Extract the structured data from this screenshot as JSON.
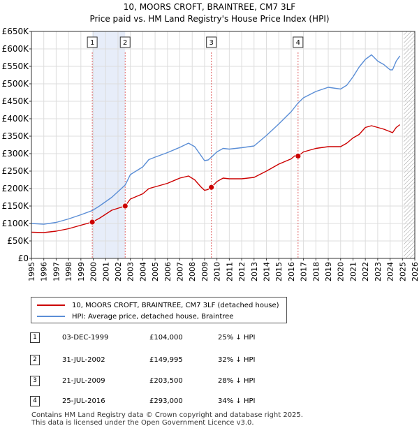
{
  "title_line1": "10, MOORS CROFT, BRAINTREE, CM7 3LF",
  "title_line2": "Price paid vs. HM Land Registry's House Price Index (HPI)",
  "chart_data": {
    "type": "line",
    "x_range": [
      1995,
      2026
    ],
    "ylim": [
      0,
      650000
    ],
    "y_ticks": [
      0,
      50000,
      100000,
      150000,
      200000,
      250000,
      300000,
      350000,
      400000,
      450000,
      500000,
      550000,
      600000,
      650000
    ],
    "y_tick_labels": [
      "£0",
      "£50K",
      "£100K",
      "£150K",
      "£200K",
      "£250K",
      "£300K",
      "£350K",
      "£400K",
      "£450K",
      "£500K",
      "£550K",
      "£600K",
      "£650K"
    ],
    "x_ticks": [
      1995,
      1996,
      1997,
      1998,
      1999,
      2000,
      2001,
      2002,
      2003,
      2004,
      2005,
      2006,
      2007,
      2008,
      2009,
      2010,
      2011,
      2012,
      2013,
      2014,
      2015,
      2016,
      2017,
      2018,
      2019,
      2020,
      2021,
      2022,
      2023,
      2024,
      2025,
      2026
    ],
    "x_tick_labels": [
      "1995",
      "1996",
      "1997",
      "1998",
      "1999",
      "2000",
      "2001",
      "2002",
      "2003",
      "2004",
      "2005",
      "2006",
      "2007",
      "2008",
      "2009",
      "2010",
      "2011",
      "2012",
      "2013",
      "2014",
      "2015",
      "2016",
      "2017",
      "2018",
      "2019",
      "2020",
      "2021",
      "2022",
      "2023",
      "2024",
      "2025",
      "2026"
    ],
    "grid": true,
    "hatched_after": 2025.1,
    "shaded_periods": [
      [
        1999.92,
        2002.58
      ]
    ],
    "series": [
      {
        "name": "10, MOORS CROFT, BRAINTREE, CM7 3LF (detached house)",
        "color": "#cc0000",
        "points": [
          [
            1995.0,
            75000
          ],
          [
            1996.0,
            74000
          ],
          [
            1997.0,
            78000
          ],
          [
            1998.0,
            85000
          ],
          [
            1999.0,
            95000
          ],
          [
            1999.92,
            104000
          ],
          [
            2000.5,
            115000
          ],
          [
            2001.5,
            138000
          ],
          [
            2002.58,
            149995
          ],
          [
            2003.0,
            170000
          ],
          [
            2004.0,
            185000
          ],
          [
            2004.5,
            200000
          ],
          [
            2005.0,
            205000
          ],
          [
            2006.0,
            215000
          ],
          [
            2007.0,
            230000
          ],
          [
            2007.7,
            236000
          ],
          [
            2008.2,
            225000
          ],
          [
            2008.7,
            205000
          ],
          [
            2009.0,
            195000
          ],
          [
            2009.25,
            197000
          ],
          [
            2009.55,
            203500
          ],
          [
            2010.0,
            220000
          ],
          [
            2010.5,
            230000
          ],
          [
            2011.0,
            228000
          ],
          [
            2012.0,
            228000
          ],
          [
            2013.0,
            232000
          ],
          [
            2014.0,
            250000
          ],
          [
            2015.0,
            270000
          ],
          [
            2016.0,
            285000
          ],
          [
            2016.4,
            297000
          ],
          [
            2016.56,
            293000
          ],
          [
            2017.0,
            305000
          ],
          [
            2018.0,
            315000
          ],
          [
            2019.0,
            320000
          ],
          [
            2020.0,
            320000
          ],
          [
            2020.5,
            330000
          ],
          [
            2021.0,
            345000
          ],
          [
            2021.5,
            355000
          ],
          [
            2022.0,
            375000
          ],
          [
            2022.5,
            380000
          ],
          [
            2023.0,
            375000
          ],
          [
            2023.5,
            370000
          ],
          [
            2024.0,
            363000
          ],
          [
            2024.2,
            360000
          ],
          [
            2024.5,
            375000
          ],
          [
            2024.8,
            383000
          ]
        ]
      },
      {
        "name": "HPI: Average price, detached house, Braintree",
        "color": "#5b8ed6",
        "points": [
          [
            1995.0,
            100000
          ],
          [
            1996.0,
            98000
          ],
          [
            1997.0,
            103000
          ],
          [
            1998.0,
            113000
          ],
          [
            1999.0,
            125000
          ],
          [
            1999.92,
            137000
          ],
          [
            2000.5,
            150000
          ],
          [
            2001.5,
            175000
          ],
          [
            2002.58,
            210000
          ],
          [
            2003.0,
            240000
          ],
          [
            2004.0,
            262000
          ],
          [
            2004.5,
            283000
          ],
          [
            2005.0,
            290000
          ],
          [
            2006.0,
            303000
          ],
          [
            2007.0,
            318000
          ],
          [
            2007.7,
            330000
          ],
          [
            2008.2,
            320000
          ],
          [
            2008.7,
            295000
          ],
          [
            2009.0,
            280000
          ],
          [
            2009.3,
            282000
          ],
          [
            2009.55,
            290000
          ],
          [
            2010.0,
            305000
          ],
          [
            2010.5,
            315000
          ],
          [
            2011.0,
            313000
          ],
          [
            2012.0,
            317000
          ],
          [
            2013.0,
            322000
          ],
          [
            2014.0,
            352000
          ],
          [
            2015.0,
            385000
          ],
          [
            2016.0,
            420000
          ],
          [
            2016.56,
            445000
          ],
          [
            2017.0,
            460000
          ],
          [
            2018.0,
            478000
          ],
          [
            2019.0,
            490000
          ],
          [
            2020.0,
            485000
          ],
          [
            2020.5,
            496000
          ],
          [
            2021.0,
            520000
          ],
          [
            2021.5,
            548000
          ],
          [
            2022.0,
            570000
          ],
          [
            2022.5,
            583000
          ],
          [
            2023.0,
            565000
          ],
          [
            2023.5,
            555000
          ],
          [
            2024.0,
            540000
          ],
          [
            2024.2,
            540000
          ],
          [
            2024.5,
            565000
          ],
          [
            2024.8,
            580000
          ]
        ]
      }
    ],
    "sales": [
      {
        "num": "1",
        "year": 1999.92,
        "price": 104000
      },
      {
        "num": "2",
        "year": 2002.58,
        "price": 149995
      },
      {
        "num": "3",
        "year": 2009.55,
        "price": 203500
      },
      {
        "num": "4",
        "year": 2016.56,
        "price": 293000
      }
    ]
  },
  "legend": {
    "property": "10, MOORS CROFT, BRAINTREE, CM7 3LF (detached house)",
    "hpi": "HPI: Average price, detached house, Braintree"
  },
  "transactions": [
    {
      "num": "1",
      "date": "03-DEC-1999",
      "price": "£104,000",
      "delta": "25% ↓ HPI"
    },
    {
      "num": "2",
      "date": "31-JUL-2002",
      "price": "£149,995",
      "delta": "32% ↓ HPI"
    },
    {
      "num": "3",
      "date": "21-JUL-2009",
      "price": "£203,500",
      "delta": "28% ↓ HPI"
    },
    {
      "num": "4",
      "date": "25-JUL-2016",
      "price": "£293,000",
      "delta": "34% ↓ HPI"
    }
  ],
  "footer_line1": "Contains HM Land Registry data © Crown copyright and database right 2025.",
  "footer_line2": "This data is licensed under the Open Government Licence v3.0."
}
